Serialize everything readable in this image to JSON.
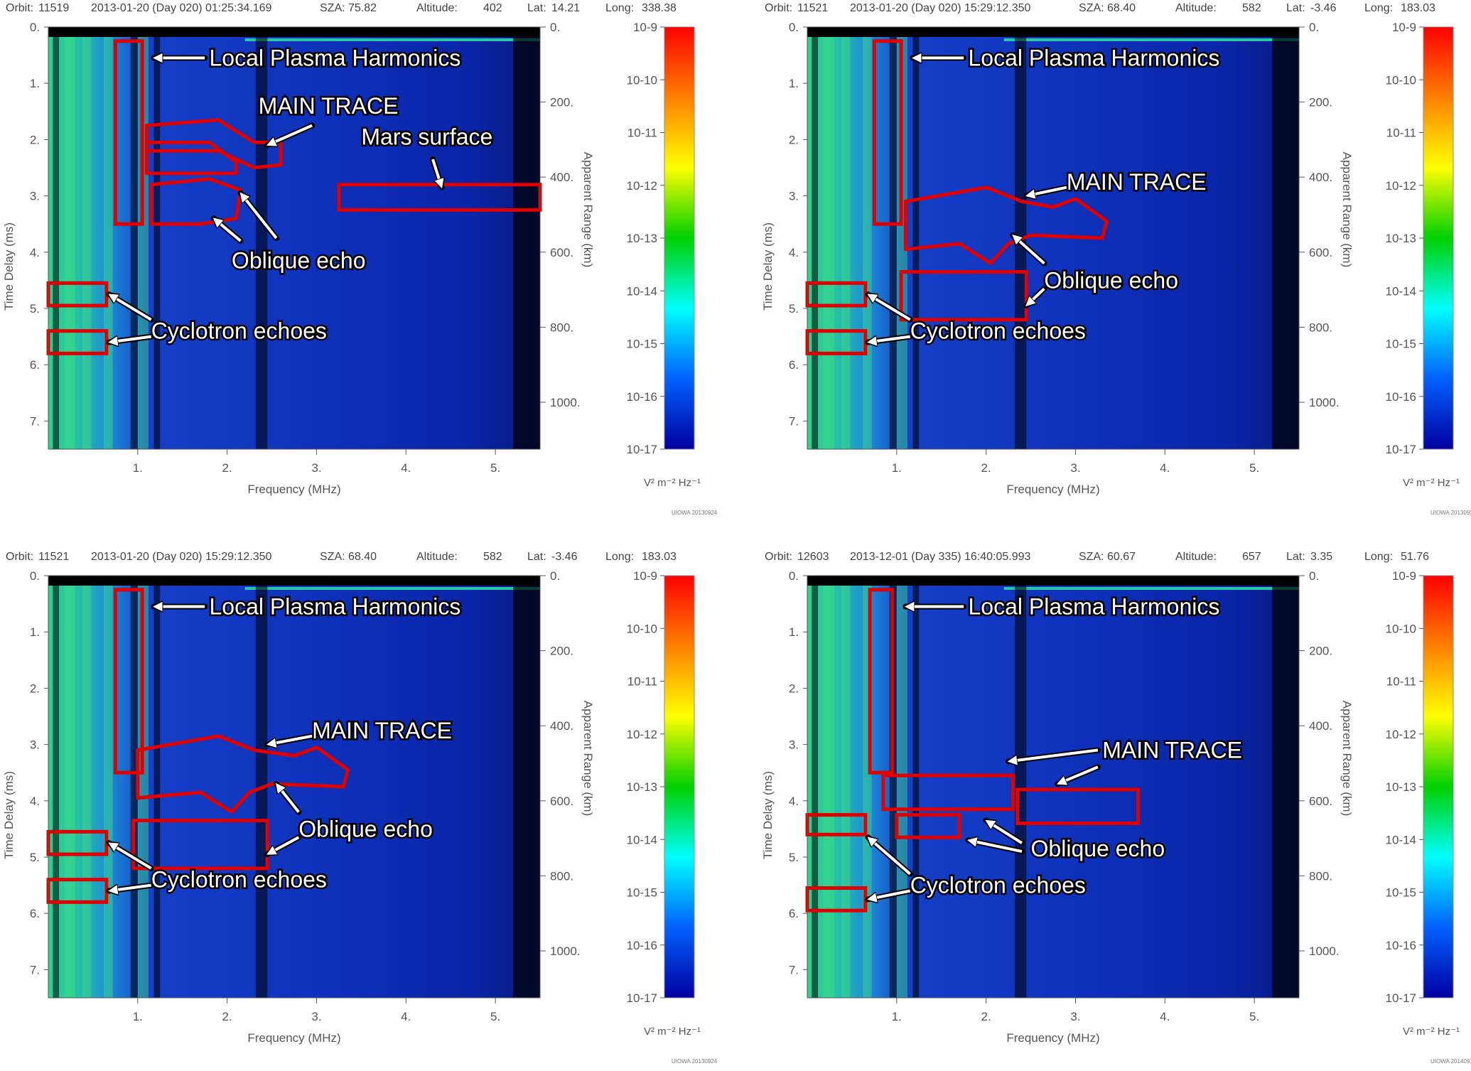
{
  "colorbar": {
    "unit_label": "V² m⁻² Hz⁻¹",
    "tick_labels": [
      "10-9",
      "10-10",
      "10-11",
      "10-12",
      "10-13",
      "10-14",
      "10-15",
      "10-16",
      "10-17"
    ],
    "stops": [
      "#ff0000",
      "#ff8000",
      "#ffff00",
      "#00d000",
      "#00ffff",
      "#0060ff",
      "#0000a0"
    ]
  },
  "colors": {
    "plot_background": "#0d2fb8",
    "annotation_box": "#e00000",
    "annotation_text": "#ffffff",
    "annotation_outline": "#000000"
  },
  "chart_data": [
    {
      "type": "heatmap",
      "header": {
        "orbit_label": "Orbit:",
        "orbit": "11519",
        "datetime": "2013-01-20 (Day 020) 01:25:34.169",
        "sza_label": "SZA:",
        "sza": "75.82",
        "altitude_label": "Altitude:",
        "altitude": "402",
        "lat_label": "Lat:",
        "lat": "14.21",
        "long_label": "Long:",
        "long": "338.38"
      },
      "xlabel": "Frequency (MHz)",
      "ylabel": "Time Delay (ms)",
      "y2label": "Apparent Range (km)",
      "xlim": [
        0,
        5.5
      ],
      "ylim": [
        0,
        7.5
      ],
      "x_ticks": [
        1,
        2,
        3,
        4,
        5
      ],
      "x_tick_labels": [
        "1.",
        "2.",
        "3.",
        "4.",
        "5."
      ],
      "y_ticks": [
        0,
        1,
        2,
        3,
        4,
        5,
        6,
        7
      ],
      "y_tick_labels": [
        "0.",
        "1.",
        "2.",
        "3.",
        "4.",
        "5.",
        "6.",
        "7."
      ],
      "y2_ticks": [
        0,
        200,
        400,
        600,
        800,
        1000
      ],
      "y2_tick_labels": [
        "0.",
        "200.",
        "400.",
        "600.",
        "800.",
        "1000."
      ],
      "watermark": "UIOWA 20130924",
      "boxes": [
        {
          "type": "rect",
          "x": [
            0.75,
            1.05
          ],
          "y": [
            0.25,
            3.5
          ]
        },
        {
          "type": "poly",
          "pts": [
            [
              1.1,
              1.75
            ],
            [
              1.9,
              1.65
            ],
            [
              2.3,
              2.05
            ],
            [
              2.6,
              2.05
            ],
            [
              2.6,
              2.45
            ],
            [
              2.3,
              2.5
            ],
            [
              1.9,
              2.2
            ],
            [
              1.1,
              2.2
            ]
          ]
        },
        {
          "type": "poly",
          "pts": [
            [
              1.1,
              2.05
            ],
            [
              1.8,
              2.05
            ],
            [
              2.1,
              2.4
            ],
            [
              2.1,
              2.6
            ],
            [
              1.1,
              2.6
            ]
          ]
        },
        {
          "type": "poly",
          "pts": [
            [
              1.15,
              2.8
            ],
            [
              1.8,
              2.7
            ],
            [
              2.15,
              2.9
            ],
            [
              2.1,
              3.4
            ],
            [
              1.7,
              3.5
            ],
            [
              1.15,
              3.5
            ]
          ]
        },
        {
          "type": "rect",
          "x": [
            3.25,
            5.5
          ],
          "y": [
            2.8,
            3.25
          ]
        },
        {
          "type": "rect",
          "x": [
            0.0,
            0.65
          ],
          "y": [
            4.55,
            4.95
          ]
        },
        {
          "type": "rect",
          "x": [
            0.0,
            0.65
          ],
          "y": [
            5.4,
            5.8
          ]
        }
      ],
      "annotations": [
        {
          "text": "Local Plasma Harmonics",
          "x": 1.8,
          "y": 0.55,
          "arrows": [
            {
              "from": [
                1.75,
                0.55
              ],
              "to": [
                1.18,
                0.55
              ]
            }
          ]
        },
        {
          "text": "MAIN TRACE",
          "x": 2.35,
          "y": 1.4,
          "arrows": [
            {
              "from": [
                2.95,
                1.75
              ],
              "to": [
                2.45,
                2.1
              ]
            }
          ]
        },
        {
          "text": "Mars surface",
          "x": 3.5,
          "y": 1.95,
          "arrows": [
            {
              "from": [
                4.3,
                2.35
              ],
              "to": [
                4.4,
                2.85
              ]
            }
          ]
        },
        {
          "text": "Oblique echo",
          "x": 2.05,
          "y": 4.15,
          "arrows": [
            {
              "from": [
                2.15,
                3.8
              ],
              "to": [
                1.85,
                3.4
              ]
            },
            {
              "from": [
                2.55,
                3.75
              ],
              "to": [
                2.15,
                2.95
              ]
            }
          ]
        },
        {
          "text": "Cyclotron echoes",
          "x": 1.15,
          "y": 5.4,
          "arrows": [
            {
              "from": [
                1.15,
                5.2
              ],
              "to": [
                0.68,
                4.75
              ]
            },
            {
              "from": [
                1.15,
                5.5
              ],
              "to": [
                0.68,
                5.6
              ]
            }
          ]
        }
      ]
    },
    {
      "type": "heatmap",
      "header": {
        "orbit_label": "Orbit:",
        "orbit": "11521",
        "datetime": "2013-01-20 (Day 020) 15:29:12.350",
        "sza_label": "SZA:",
        "sza": "68.40",
        "altitude_label": "Altitude:",
        "altitude": "582",
        "lat_label": "Lat:",
        "lat": "-3.46",
        "long_label": "Long:",
        "long": "183.03"
      },
      "xlabel": "Frequency (MHz)",
      "ylabel": "Time Delay (ms)",
      "y2label": "Apparent Range (km)",
      "xlim": [
        0,
        5.5
      ],
      "ylim": [
        0,
        7.5
      ],
      "x_ticks": [
        1,
        2,
        3,
        4,
        5
      ],
      "x_tick_labels": [
        "1.",
        "2.",
        "3.",
        "4.",
        "5."
      ],
      "y_ticks": [
        0,
        1,
        2,
        3,
        4,
        5,
        6,
        7
      ],
      "y_tick_labels": [
        "0.",
        "1.",
        "2.",
        "3.",
        "4.",
        "5.",
        "6.",
        "7."
      ],
      "y2_ticks": [
        0,
        200,
        400,
        600,
        800,
        1000
      ],
      "y2_tick_labels": [
        "0.",
        "200.",
        "400.",
        "600.",
        "800.",
        "1000."
      ],
      "watermark": "UIOWA 20130924",
      "boxes": [
        {
          "type": "rect",
          "x": [
            0.75,
            1.05
          ],
          "y": [
            0.25,
            3.5
          ]
        },
        {
          "type": "poly",
          "pts": [
            [
              1.1,
              3.1
            ],
            [
              2.0,
              2.85
            ],
            [
              2.4,
              3.1
            ],
            [
              2.75,
              3.2
            ],
            [
              3.0,
              3.05
            ],
            [
              3.35,
              3.45
            ],
            [
              3.3,
              3.75
            ],
            [
              2.5,
              3.7
            ],
            [
              2.25,
              3.85
            ],
            [
              2.05,
              4.2
            ],
            [
              1.7,
              3.85
            ],
            [
              1.1,
              3.95
            ]
          ]
        },
        {
          "type": "rect",
          "x": [
            1.05,
            2.45
          ],
          "y": [
            4.35,
            5.2
          ]
        },
        {
          "type": "rect",
          "x": [
            0.0,
            0.65
          ],
          "y": [
            4.55,
            4.95
          ]
        },
        {
          "type": "rect",
          "x": [
            0.0,
            0.65
          ],
          "y": [
            5.4,
            5.8
          ]
        }
      ],
      "annotations": [
        {
          "text": "Local Plasma Harmonics",
          "x": 1.8,
          "y": 0.55,
          "arrows": [
            {
              "from": [
                1.75,
                0.55
              ],
              "to": [
                1.18,
                0.55
              ]
            }
          ]
        },
        {
          "text": "MAIN TRACE",
          "x": 2.9,
          "y": 2.75,
          "arrows": [
            {
              "from": [
                2.9,
                2.85
              ],
              "to": [
                2.45,
                3.0
              ]
            }
          ]
        },
        {
          "text": "Oblique echo",
          "x": 2.65,
          "y": 4.5,
          "arrows": [
            {
              "from": [
                2.65,
                4.2
              ],
              "to": [
                2.3,
                3.7
              ]
            },
            {
              "from": [
                2.65,
                4.65
              ],
              "to": [
                2.45,
                4.95
              ]
            }
          ]
        },
        {
          "text": "Cyclotron echoes",
          "x": 1.15,
          "y": 5.4,
          "arrows": [
            {
              "from": [
                1.15,
                5.2
              ],
              "to": [
                0.68,
                4.75
              ]
            },
            {
              "from": [
                1.15,
                5.5
              ],
              "to": [
                0.68,
                5.6
              ]
            }
          ]
        }
      ]
    },
    {
      "type": "heatmap",
      "header": {
        "orbit_label": "Orbit:",
        "orbit": "11521",
        "datetime": "2013-01-20 (Day 020) 15:29:12.350",
        "sza_label": "SZA:",
        "sza": "68.40",
        "altitude_label": "Altitude:",
        "altitude": "582",
        "lat_label": "Lat:",
        "lat": "-3.46",
        "long_label": "Long:",
        "long": "183.03"
      },
      "xlabel": "Frequency (MHz)",
      "ylabel": "Time Delay (ms)",
      "y2label": "Apparent Range (km)",
      "xlim": [
        0,
        5.5
      ],
      "ylim": [
        0,
        7.5
      ],
      "x_ticks": [
        1,
        2,
        3,
        4,
        5
      ],
      "x_tick_labels": [
        "1.",
        "2.",
        "3.",
        "4.",
        "5."
      ],
      "y_ticks": [
        0,
        1,
        2,
        3,
        4,
        5,
        6,
        7
      ],
      "y_tick_labels": [
        "0.",
        "1.",
        "2.",
        "3.",
        "4.",
        "5.",
        "6.",
        "7."
      ],
      "y2_ticks": [
        0,
        200,
        400,
        600,
        800,
        1000
      ],
      "y2_tick_labels": [
        "0.",
        "200.",
        "400.",
        "600.",
        "800.",
        "1000."
      ],
      "watermark": "UIOWA 20130924",
      "boxes": [
        {
          "type": "rect",
          "x": [
            0.75,
            1.05
          ],
          "y": [
            0.25,
            3.5
          ]
        },
        {
          "type": "poly",
          "pts": [
            [
              1.0,
              3.1
            ],
            [
              1.9,
              2.85
            ],
            [
              2.3,
              3.1
            ],
            [
              2.75,
              3.2
            ],
            [
              3.0,
              3.05
            ],
            [
              3.35,
              3.45
            ],
            [
              3.3,
              3.75
            ],
            [
              2.5,
              3.7
            ],
            [
              2.25,
              3.85
            ],
            [
              2.05,
              4.2
            ],
            [
              1.7,
              3.85
            ],
            [
              1.0,
              3.95
            ]
          ]
        },
        {
          "type": "rect",
          "x": [
            0.95,
            2.45
          ],
          "y": [
            4.35,
            5.2
          ]
        },
        {
          "type": "rect",
          "x": [
            0.0,
            0.65
          ],
          "y": [
            4.55,
            4.95
          ]
        },
        {
          "type": "rect",
          "x": [
            0.0,
            0.65
          ],
          "y": [
            5.4,
            5.8
          ]
        }
      ],
      "annotations": [
        {
          "text": "Local Plasma Harmonics",
          "x": 1.8,
          "y": 0.55,
          "arrows": [
            {
              "from": [
                1.75,
                0.55
              ],
              "to": [
                1.18,
                0.55
              ]
            }
          ]
        },
        {
          "text": "MAIN TRACE",
          "x": 2.95,
          "y": 2.75,
          "arrows": [
            {
              "from": [
                2.95,
                2.85
              ],
              "to": [
                2.45,
                3.0
              ]
            }
          ]
        },
        {
          "text": "Oblique echo",
          "x": 2.8,
          "y": 4.5,
          "arrows": [
            {
              "from": [
                2.8,
                4.2
              ],
              "to": [
                2.55,
                3.7
              ]
            },
            {
              "from": [
                2.8,
                4.65
              ],
              "to": [
                2.45,
                4.95
              ]
            }
          ]
        },
        {
          "text": "Cyclotron echoes",
          "x": 1.15,
          "y": 5.4,
          "arrows": [
            {
              "from": [
                1.15,
                5.2
              ],
              "to": [
                0.68,
                4.75
              ]
            },
            {
              "from": [
                1.15,
                5.5
              ],
              "to": [
                0.68,
                5.6
              ]
            }
          ]
        }
      ]
    },
    {
      "type": "heatmap",
      "header": {
        "orbit_label": "Orbit:",
        "orbit": "12603",
        "datetime": "2013-12-01 (Day 335) 16:40:05.993",
        "sza_label": "SZA:",
        "sza": "60.67",
        "altitude_label": "Altitude:",
        "altitude": "657",
        "lat_label": "Lat:",
        "lat": "3.35",
        "long_label": "Long:",
        "long": "51.76"
      },
      "xlabel": "Frequency (MHz)",
      "ylabel": "Time Delay (ms)",
      "y2label": "Apparent Range (km)",
      "xlim": [
        0,
        5.5
      ],
      "ylim": [
        0,
        7.5
      ],
      "x_ticks": [
        1,
        2,
        3,
        4,
        5
      ],
      "x_tick_labels": [
        "1.",
        "2.",
        "3.",
        "4.",
        "5."
      ],
      "y_ticks": [
        0,
        1,
        2,
        3,
        4,
        5,
        6,
        7
      ],
      "y_tick_labels": [
        "0.",
        "1.",
        "2.",
        "3.",
        "4.",
        "5.",
        "6.",
        "7."
      ],
      "y2_ticks": [
        0,
        200,
        400,
        600,
        800,
        1000
      ],
      "y2_tick_labels": [
        "0.",
        "200.",
        "400.",
        "600.",
        "800.",
        "1000."
      ],
      "watermark": "UIOWA 20140912",
      "boxes": [
        {
          "type": "rect",
          "x": [
            0.7,
            0.95
          ],
          "y": [
            0.25,
            3.5
          ]
        },
        {
          "type": "rect",
          "x": [
            0.85,
            2.3
          ],
          "y": [
            3.55,
            4.15
          ]
        },
        {
          "type": "rect",
          "x": [
            2.35,
            3.7
          ],
          "y": [
            3.8,
            4.4
          ]
        },
        {
          "type": "rect",
          "x": [
            1.0,
            1.7
          ],
          "y": [
            4.25,
            4.65
          ]
        },
        {
          "type": "rect",
          "x": [
            0.0,
            0.65
          ],
          "y": [
            4.25,
            4.6
          ]
        },
        {
          "type": "rect",
          "x": [
            0.0,
            0.65
          ],
          "y": [
            5.55,
            5.95
          ]
        }
      ],
      "annotations": [
        {
          "text": "Local Plasma Harmonics",
          "x": 1.8,
          "y": 0.55,
          "arrows": [
            {
              "from": [
                1.75,
                0.55
              ],
              "to": [
                1.1,
                0.55
              ]
            }
          ]
        },
        {
          "text": "MAIN TRACE",
          "x": 3.3,
          "y": 3.1,
          "arrows": [
            {
              "from": [
                3.25,
                3.1
              ],
              "to": [
                2.25,
                3.3
              ]
            },
            {
              "from": [
                3.25,
                3.4
              ],
              "to": [
                2.8,
                3.7
              ]
            }
          ]
        },
        {
          "text": "Oblique echo",
          "x": 2.5,
          "y": 4.85,
          "arrows": [
            {
              "from": [
                2.4,
                4.75
              ],
              "to": [
                2.0,
                4.35
              ]
            },
            {
              "from": [
                2.4,
                4.9
              ],
              "to": [
                1.8,
                4.7
              ]
            }
          ]
        },
        {
          "text": "Cyclotron echoes",
          "x": 1.15,
          "y": 5.5,
          "arrows": [
            {
              "from": [
                1.15,
                5.3
              ],
              "to": [
                0.68,
                4.65
              ]
            },
            {
              "from": [
                1.15,
                5.6
              ],
              "to": [
                0.68,
                5.75
              ]
            }
          ]
        }
      ]
    }
  ]
}
